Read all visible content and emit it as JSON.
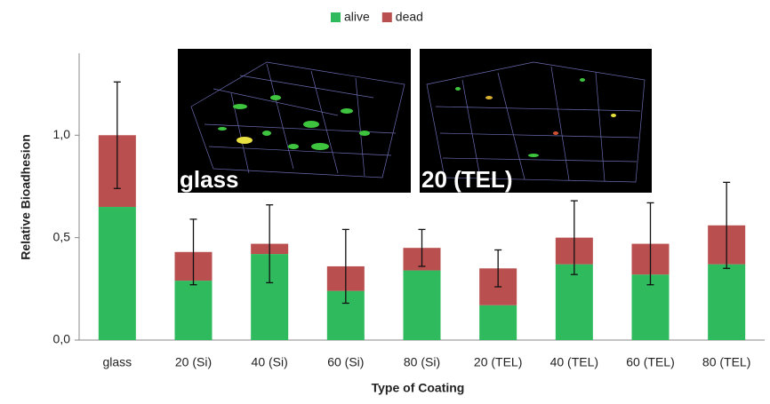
{
  "chart_data": {
    "type": "stacked_bar",
    "x_label": "Type of Coating",
    "y_label": "Relative Bioadhesion",
    "categories": [
      "glass",
      "20 (Si)",
      "40 (Si)",
      "60 (Si)",
      "80 (Si)",
      "20 (TEL)",
      "40 (TEL)",
      "60 (TEL)",
      "80 (TEL)"
    ],
    "series": [
      {
        "name": "alive",
        "color": "#2fba5e",
        "values": [
          0.65,
          0.29,
          0.42,
          0.24,
          0.34,
          0.17,
          0.37,
          0.32,
          0.37
        ]
      },
      {
        "name": "dead",
        "color": "#b9504f",
        "values": [
          0.35,
          0.14,
          0.05,
          0.12,
          0.11,
          0.18,
          0.13,
          0.15,
          0.19
        ],
        "errors": [
          0.26,
          0.16,
          0.19,
          0.18,
          0.09,
          0.09,
          0.18,
          0.2,
          0.21
        ]
      }
    ],
    "ylim": [
      0,
      1.4
    ],
    "yticks": [
      {
        "value": 0,
        "label": "0,0"
      },
      {
        "value": 0.5,
        "label": "0,5"
      },
      {
        "value": 1,
        "label": "1,0"
      }
    ],
    "legend": "top",
    "insets": [
      {
        "label": "glass"
      },
      {
        "label": "20 (TEL)"
      }
    ]
  }
}
